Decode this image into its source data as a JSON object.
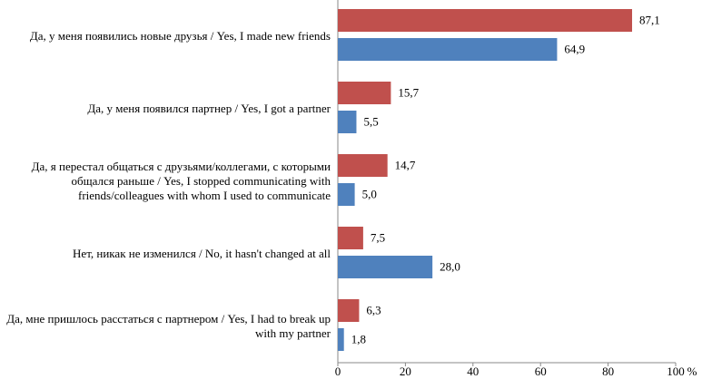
{
  "chart_data": {
    "type": "barh",
    "categories": [
      "Да, у меня появились новые друзья / Yes, I made new friends",
      "Да, у меня появился партнер / Yes, I got a partner",
      "Да, я перестал общаться с друзьями/коллегами, с которыми общался раньше / Yes, I stopped communicating with friends/colleagues with whom I used to communicate",
      "Нет, никак не изменился / No, it hasn't changed at all",
      "Да, мне пришлось расстаться с партнером / Yes, I had to break up with my partner"
    ],
    "series": [
      {
        "color": "#c0504d",
        "values": [
          87.1,
          15.7,
          14.7,
          7.5,
          6.3
        ],
        "value_labels": [
          "87,1",
          "15,7",
          "14,7",
          "7,5",
          "6,3"
        ]
      },
      {
        "color": "#4f81bd",
        "values": [
          64.9,
          5.5,
          5.0,
          28.0,
          1.8
        ],
        "value_labels": [
          "64,9",
          "5,5",
          "5,0",
          "28,0",
          "1,8"
        ]
      }
    ],
    "xlim": [
      0,
      100
    ],
    "xticks": [
      0,
      20,
      40,
      60,
      80,
      100
    ],
    "x_label": "%"
  }
}
